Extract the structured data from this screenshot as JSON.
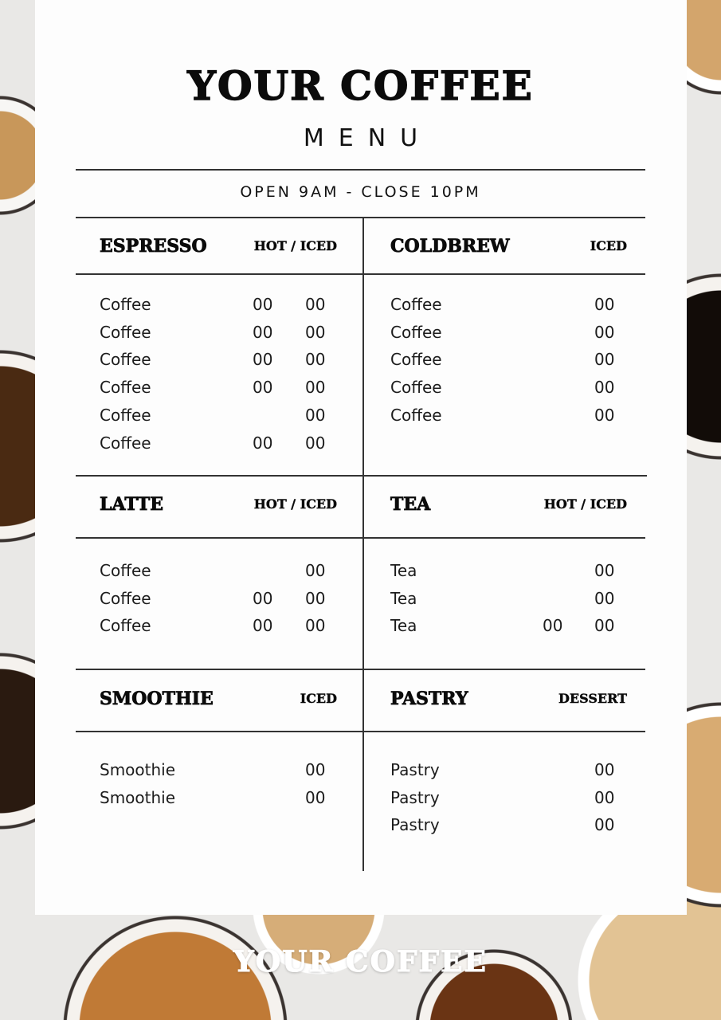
{
  "header": {
    "title": "YOUR COFFEE",
    "subtitle": "MENU",
    "hours": "OPEN 9AM - CLOSE 10PM"
  },
  "sections": [
    {
      "title": "ESPRESSO",
      "tag": "HOT / ICED",
      "items": [
        {
          "name": "Coffee",
          "hot": "00",
          "iced": "00"
        },
        {
          "name": "Coffee",
          "hot": "00",
          "iced": "00"
        },
        {
          "name": "Coffee",
          "hot": "00",
          "iced": "00"
        },
        {
          "name": "Coffee",
          "hot": "00",
          "iced": "00"
        },
        {
          "name": "Coffee",
          "hot": "",
          "iced": "00"
        },
        {
          "name": "Coffee",
          "hot": "00",
          "iced": "00"
        }
      ]
    },
    {
      "title": "COLDBREW",
      "tag": "ICED",
      "items": [
        {
          "name": "Coffee",
          "hot": "",
          "iced": "00"
        },
        {
          "name": "Coffee",
          "hot": "",
          "iced": "00"
        },
        {
          "name": "Coffee",
          "hot": "",
          "iced": "00"
        },
        {
          "name": "Coffee",
          "hot": "",
          "iced": "00"
        },
        {
          "name": "Coffee",
          "hot": "",
          "iced": "00"
        }
      ]
    },
    {
      "title": "LATTE",
      "tag": "HOT / ICED",
      "items": [
        {
          "name": "Coffee",
          "hot": "",
          "iced": "00"
        },
        {
          "name": "Coffee",
          "hot": "00",
          "iced": "00"
        },
        {
          "name": "Coffee",
          "hot": "00",
          "iced": "00"
        }
      ]
    },
    {
      "title": "TEA",
      "tag": "HOT / ICED",
      "items": [
        {
          "name": "Tea",
          "hot": "",
          "iced": "00"
        },
        {
          "name": "Tea",
          "hot": "",
          "iced": "00"
        },
        {
          "name": "Tea",
          "hot": "00",
          "iced": "00"
        }
      ]
    },
    {
      "title": "SMOOTHIE",
      "tag": "ICED",
      "items": [
        {
          "name": "Smoothie",
          "hot": "",
          "iced": "00"
        },
        {
          "name": "Smoothie",
          "hot": "",
          "iced": "00"
        }
      ]
    },
    {
      "title": "PASTRY",
      "tag": "DESSERT",
      "items": [
        {
          "name": "Pastry",
          "hot": "",
          "iced": "00"
        },
        {
          "name": "Pastry",
          "hot": "",
          "iced": "00"
        },
        {
          "name": "Pastry",
          "hot": "",
          "iced": "00"
        }
      ]
    }
  ],
  "footer": {
    "brand": "YOUR COFFEE"
  },
  "colors": {
    "text": "#0b0b0b",
    "panel": "#fdfdfd",
    "rule": "#333333"
  }
}
